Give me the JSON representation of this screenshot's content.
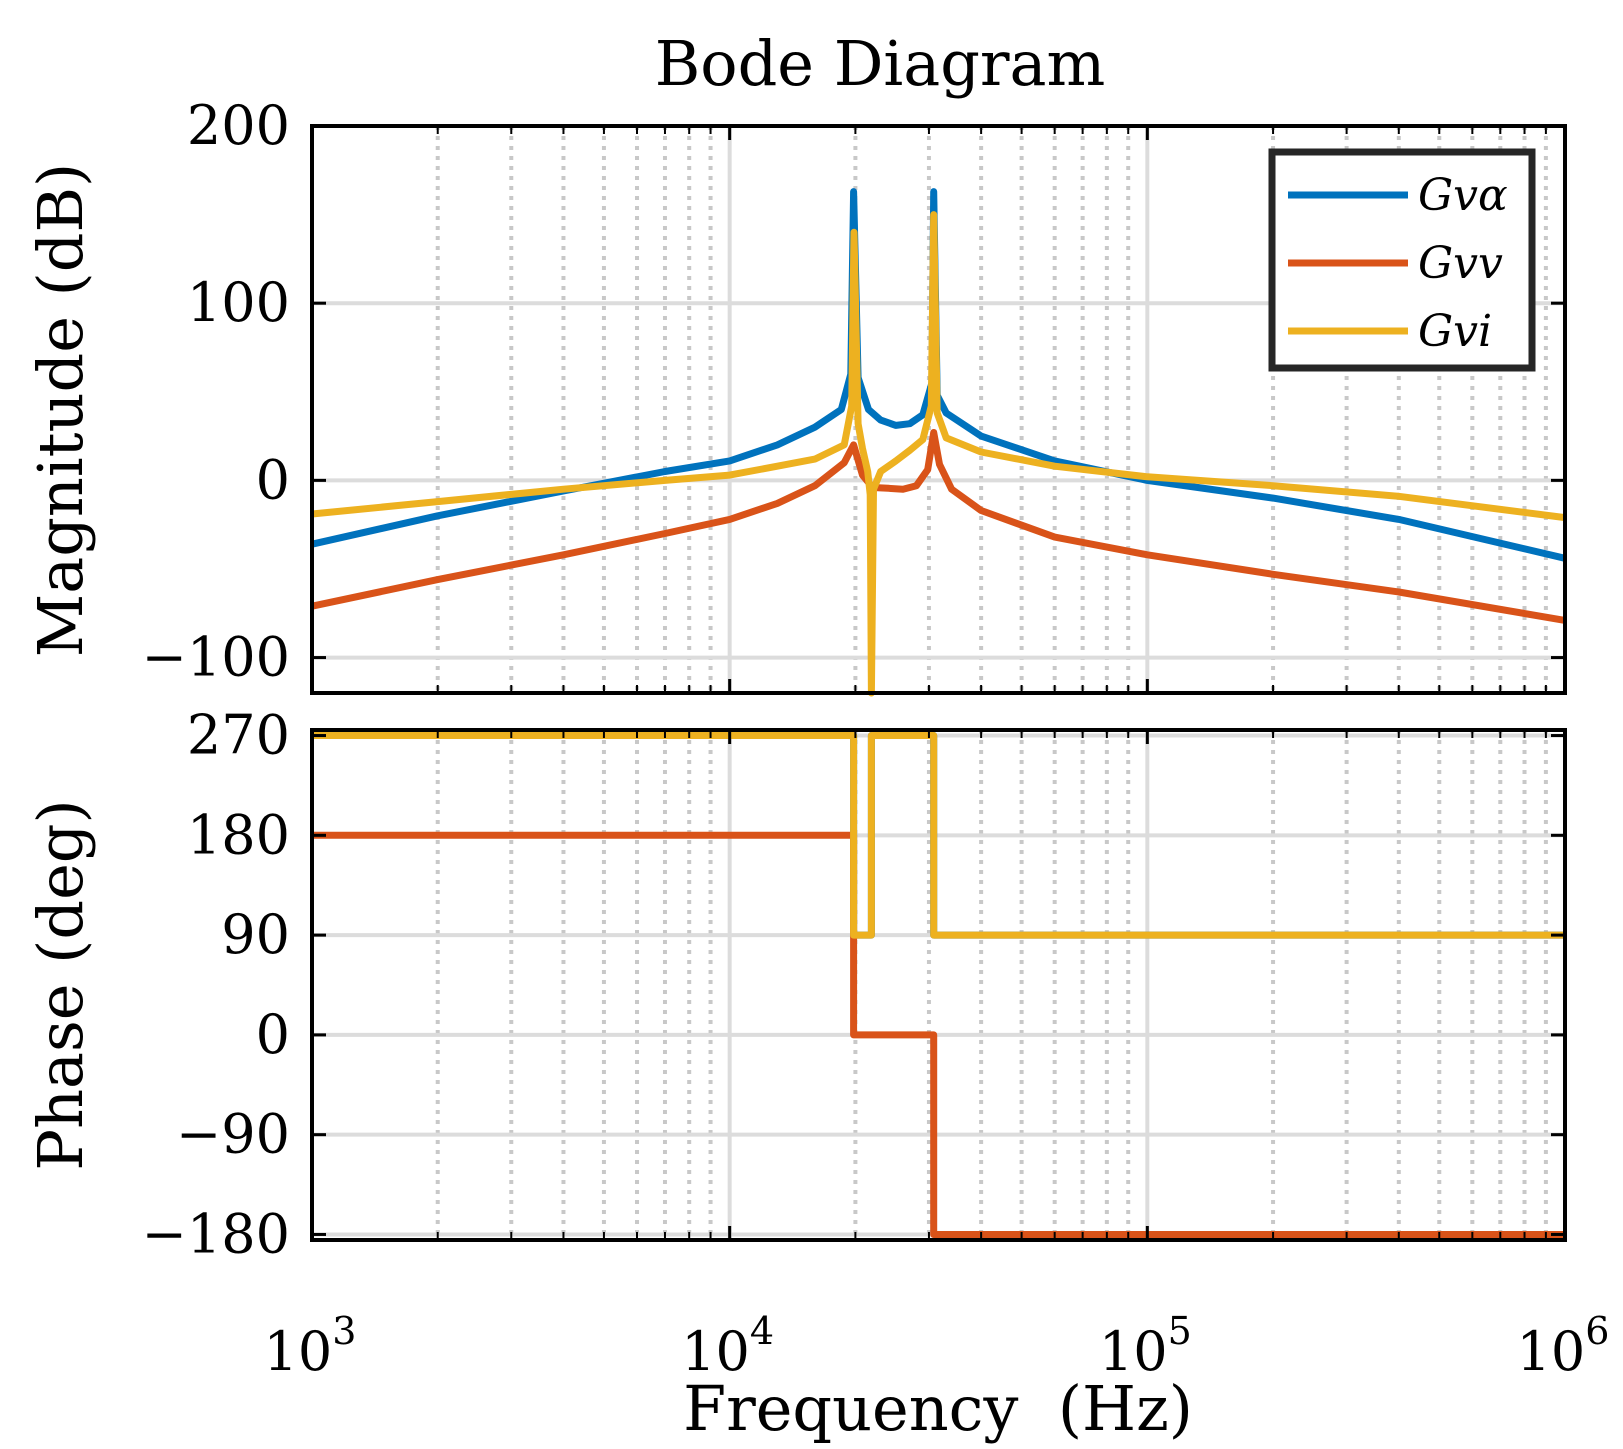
{
  "chart_data": {
    "type": "line",
    "title": "Bode Diagram",
    "xlabel": "Frequency  (Hz)",
    "x_scale": "log",
    "xlim": [
      1000,
      1000000
    ],
    "x_ticks": [
      {
        "value": 1000,
        "base": "10",
        "exp": "3"
      },
      {
        "value": 10000,
        "base": "10",
        "exp": "4"
      },
      {
        "value": 100000,
        "base": "10",
        "exp": "5"
      },
      {
        "value": 1000000,
        "base": "10",
        "exp": "6"
      }
    ],
    "legend_position": "top-right",
    "series": [
      {
        "name": "Gvα",
        "color": "#0072BD"
      },
      {
        "name": "Gvv",
        "color": "#D95319"
      },
      {
        "name": "Gvi",
        "color": "#EDB120"
      }
    ],
    "subplots": [
      {
        "name": "magnitude",
        "ylabel": "Magnitude (dB)",
        "ylim": [
          -120,
          200
        ],
        "yticks": [
          -100,
          0,
          100,
          200
        ],
        "ytick_labels": [
          "−100",
          "0",
          "100",
          "200"
        ],
        "series": [
          {
            "name": "Gvα",
            "points": [
              [
                1000,
                -36
              ],
              [
                2000,
                -20
              ],
              [
                4000,
                -6
              ],
              [
                7000,
                5
              ],
              [
                10000,
                11
              ],
              [
                13000,
                20
              ],
              [
                16000,
                30
              ],
              [
                18500,
                40
              ],
              [
                19500,
                60
              ],
              [
                19800,
                163
              ],
              [
                20300,
                58
              ],
              [
                21500,
                40
              ],
              [
                23000,
                34
              ],
              [
                25000,
                31
              ],
              [
                27000,
                32
              ],
              [
                29000,
                37
              ],
              [
                30500,
                55
              ],
              [
                30800,
                163
              ],
              [
                31400,
                48
              ],
              [
                33000,
                38
              ],
              [
                40000,
                25
              ],
              [
                60000,
                11
              ],
              [
                100000,
                0
              ],
              [
                200000,
                -10
              ],
              [
                400000,
                -22
              ],
              [
                1000000,
                -44
              ]
            ]
          },
          {
            "name": "Gvv",
            "points": [
              [
                1000,
                -71
              ],
              [
                2000,
                -56
              ],
              [
                4000,
                -42
              ],
              [
                7000,
                -30
              ],
              [
                10000,
                -22
              ],
              [
                13000,
                -13
              ],
              [
                16000,
                -3
              ],
              [
                18800,
                10
              ],
              [
                19800,
                20
              ],
              [
                20800,
                3
              ],
              [
                22000,
                -4
              ],
              [
                24000,
                -4.5
              ],
              [
                26000,
                -5
              ],
              [
                28000,
                -3
              ],
              [
                29800,
                6
              ],
              [
                30800,
                27
              ],
              [
                31800,
                9
              ],
              [
                34000,
                -5
              ],
              [
                40000,
                -17
              ],
              [
                60000,
                -32
              ],
              [
                100000,
                -42
              ],
              [
                200000,
                -53
              ],
              [
                400000,
                -63
              ],
              [
                1000000,
                -79
              ]
            ]
          },
          {
            "name": "Gvi",
            "points": [
              [
                1000,
                -19
              ],
              [
                2000,
                -12
              ],
              [
                4000,
                -5
              ],
              [
                7000,
                0
              ],
              [
                10000,
                3
              ],
              [
                13000,
                8
              ],
              [
                16000,
                12
              ],
              [
                18800,
                20
              ],
              [
                19600,
                42
              ],
              [
                19850,
                140
              ],
              [
                20300,
                32
              ],
              [
                20800,
                18
              ],
              [
                21400,
                5
              ],
              [
                21700,
                -8
              ],
              [
                21850,
                -122
              ],
              [
                22100,
                -5
              ],
              [
                23000,
                5
              ],
              [
                25000,
                11
              ],
              [
                27000,
                17
              ],
              [
                29000,
                23
              ],
              [
                30400,
                42
              ],
              [
                30800,
                150
              ],
              [
                31400,
                38
              ],
              [
                33000,
                24
              ],
              [
                40000,
                16
              ],
              [
                60000,
                8
              ],
              [
                100000,
                2
              ],
              [
                200000,
                -3
              ],
              [
                400000,
                -9
              ],
              [
                1000000,
                -21
              ]
            ]
          }
        ]
      },
      {
        "name": "phase",
        "ylabel": "Phase (deg)",
        "ylim": [
          -185,
          275
        ],
        "yticks": [
          -180,
          -90,
          0,
          90,
          180,
          270
        ],
        "ytick_labels": [
          "−180",
          "−90",
          "0",
          "90",
          "180",
          "270"
        ],
        "series": [
          {
            "name": "Gvα",
            "points": [
              [
                1000,
                270
              ],
              [
                19800,
                270
              ],
              [
                19800,
                90
              ],
              [
                21850,
                90
              ],
              [
                21850,
                270
              ],
              [
                30800,
                270
              ],
              [
                30800,
                90
              ],
              [
                1000000,
                90
              ]
            ]
          },
          {
            "name": "Gvv",
            "points": [
              [
                1000,
                180
              ],
              [
                19800,
                180
              ],
              [
                19800,
                0
              ],
              [
                30800,
                0
              ],
              [
                30800,
                -180
              ],
              [
                1000000,
                -180
              ]
            ]
          },
          {
            "name": "Gvi",
            "points": [
              [
                1000,
                270
              ],
              [
                19800,
                270
              ],
              [
                19800,
                90
              ],
              [
                21850,
                90
              ],
              [
                21850,
                270
              ],
              [
                30800,
                270
              ],
              [
                30800,
                90
              ],
              [
                1000000,
                90
              ]
            ]
          }
        ]
      }
    ]
  }
}
